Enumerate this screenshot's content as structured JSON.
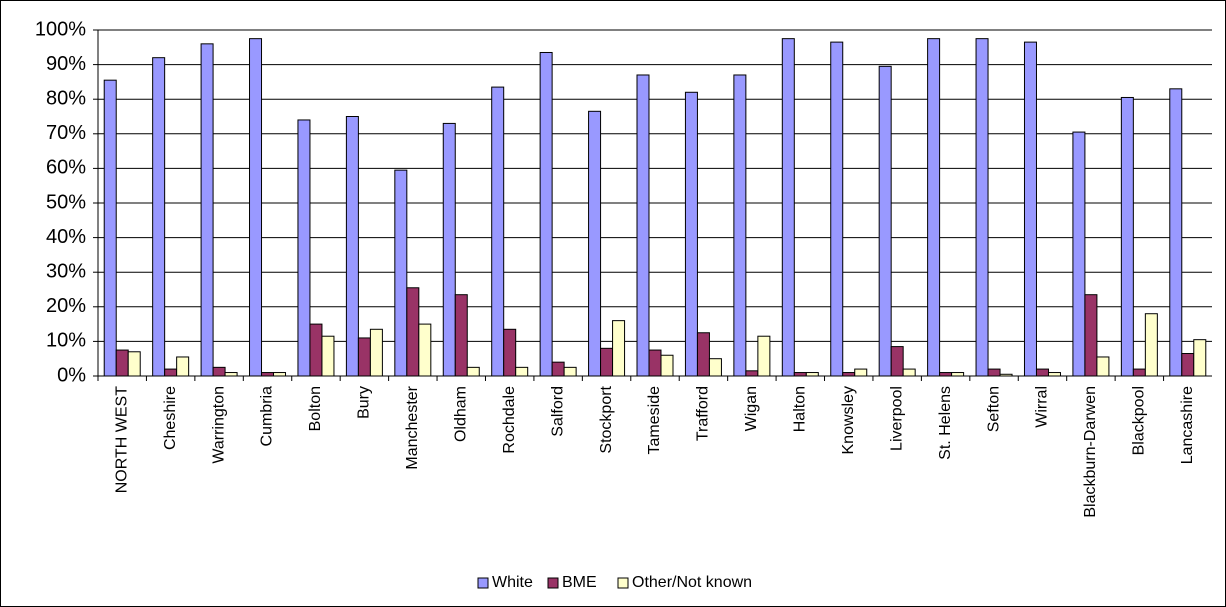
{
  "chart_data": {
    "type": "bar",
    "categories": [
      "NORTH WEST",
      "Cheshire",
      "Warrington",
      "Cumbria",
      "Bolton",
      "Bury",
      "Manchester",
      "Oldham",
      "Rochdale",
      "Salford",
      "Stockport",
      "Tameside",
      "Trafford",
      "Wigan",
      "Halton",
      "Knowsley",
      "Liverpool",
      "St. Helens",
      "Sefton",
      "Wirral",
      "Blackburn-Darwen",
      "Blackpool",
      "Lancashire"
    ],
    "series": [
      {
        "name": "White",
        "color": "#9999ff",
        "values": [
          85.5,
          92,
          96,
          97.5,
          74,
          75,
          59.5,
          73,
          83.5,
          93.5,
          76.5,
          87,
          82,
          87,
          97.5,
          96.5,
          89.5,
          97.5,
          97.5,
          96.5,
          70.5,
          80.5,
          83
        ]
      },
      {
        "name": "BME",
        "color": "#993366",
        "values": [
          7.5,
          2,
          2.5,
          1,
          15,
          11,
          25.5,
          23.5,
          13.5,
          4,
          8,
          7.5,
          12.5,
          1.5,
          1,
          1,
          8.5,
          1,
          2,
          2,
          23.5,
          2,
          6.5
        ]
      },
      {
        "name": "Other/Not known",
        "color": "#ffffcc",
        "values": [
          7,
          5.5,
          1,
          1,
          11.5,
          13.5,
          15,
          2.5,
          2.5,
          2.5,
          16,
          6,
          5,
          11.5,
          1,
          2,
          2,
          1,
          0.5,
          1,
          5.5,
          18,
          10.5
        ]
      }
    ],
    "ylim": [
      0,
      100
    ],
    "yticks": [
      {
        "value": 0,
        "label": "0%"
      },
      {
        "value": 10,
        "label": "10%"
      },
      {
        "value": 20,
        "label": "20%"
      },
      {
        "value": 30,
        "label": "30%"
      },
      {
        "value": 40,
        "label": "40%"
      },
      {
        "value": 50,
        "label": "50%"
      },
      {
        "value": 60,
        "label": "60%"
      },
      {
        "value": 70,
        "label": "70%"
      },
      {
        "value": 80,
        "label": "80%"
      },
      {
        "value": 90,
        "label": "90%"
      },
      {
        "value": 100,
        "label": "100%"
      }
    ],
    "grid": true,
    "legend": "bottom"
  }
}
